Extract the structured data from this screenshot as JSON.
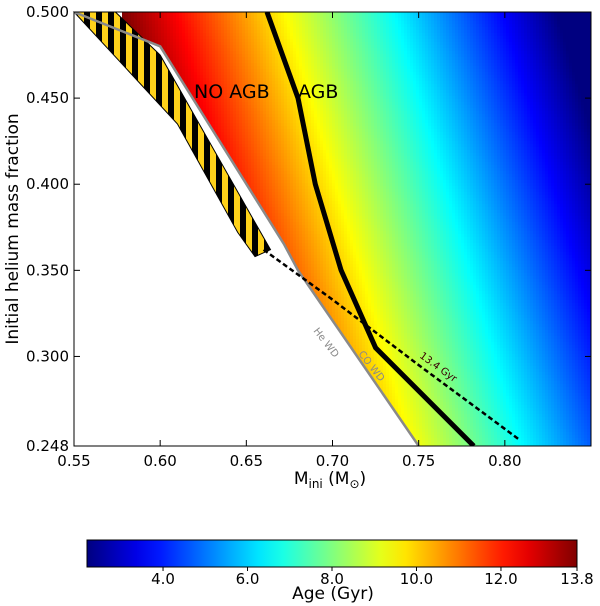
{
  "chart_data": {
    "type": "heatmap",
    "title": "",
    "xlabel": "M",
    "xlabel_sub": "ini",
    "xlabel_unit_open": " (M",
    "xlabel_unit_close": ")",
    "ylabel": "Initial helium mass fraction",
    "xlim": [
      0.55,
      0.85
    ],
    "ylim": [
      0.248,
      0.5
    ],
    "xticks": [
      {
        "v": 0.55,
        "label": "0.55"
      },
      {
        "v": 0.6,
        "label": "0.60"
      },
      {
        "v": 0.65,
        "label": "0.65"
      },
      {
        "v": 0.7,
        "label": "0.70"
      },
      {
        "v": 0.75,
        "label": "0.75"
      },
      {
        "v": 0.8,
        "label": "0.80"
      }
    ],
    "yticks": [
      {
        "v": 0.248,
        "label": "0.248"
      },
      {
        "v": 0.3,
        "label": "0.300"
      },
      {
        "v": 0.35,
        "label": "0.350"
      },
      {
        "v": 0.4,
        "label": "0.400"
      },
      {
        "v": 0.45,
        "label": "0.450"
      },
      {
        "v": 0.5,
        "label": "0.500"
      }
    ],
    "colorbar": {
      "label": "Age (Gyr)",
      "range": [
        2.2,
        13.8
      ],
      "colormap": "jet",
      "ticks": [
        {
          "v": 4.0,
          "label": "4.0"
        },
        {
          "v": 6.0,
          "label": "6.0"
        },
        {
          "v": 8.0,
          "label": "8.0"
        },
        {
          "v": 10.0,
          "label": "10.0"
        },
        {
          "v": 12.0,
          "label": "12.0"
        },
        {
          "v": 13.8,
          "label": "13.8"
        }
      ]
    },
    "region_labels": {
      "left": "NO AGB",
      "right": "AGB"
    },
    "curves": {
      "agb_boundary": {
        "color": "#000000",
        "points": [
          [
            0.662,
            0.5
          ],
          [
            0.68,
            0.45
          ],
          [
            0.69,
            0.4
          ],
          [
            0.705,
            0.35
          ],
          [
            0.725,
            0.305
          ],
          [
            0.782,
            0.248
          ]
        ]
      },
      "he_co_wd_boundary": {
        "color": "#8a8a8a",
        "label_left": "He WD",
        "label_right": "CO WD",
        "points": [
          [
            0.55,
            0.5
          ],
          [
            0.6,
            0.48
          ],
          [
            0.672,
            0.365
          ],
          [
            0.68,
            0.35
          ],
          [
            0.75,
            0.248
          ]
        ]
      },
      "age_13_4_gyr": {
        "color": "#000000",
        "style": "dashed",
        "label": "13.4 Gyr",
        "points": [
          [
            0.66,
            0.362
          ],
          [
            0.7,
            0.333
          ],
          [
            0.75,
            0.295
          ],
          [
            0.808,
            0.252
          ]
        ]
      }
    },
    "hatched_region": {
      "pattern_colors": [
        "#000000",
        "#ffd21a"
      ],
      "points": [
        [
          0.55,
          0.5
        ],
        [
          0.574,
          0.5
        ],
        [
          0.6,
          0.475
        ],
        [
          0.664,
          0.362
        ],
        [
          0.655,
          0.358
        ],
        [
          0.645,
          0.372
        ],
        [
          0.61,
          0.435
        ]
      ]
    },
    "age_model": {
      "x0": 0.582,
      "y0": 0.486,
      "ax": 46.0,
      "ay": 13.5
    }
  }
}
